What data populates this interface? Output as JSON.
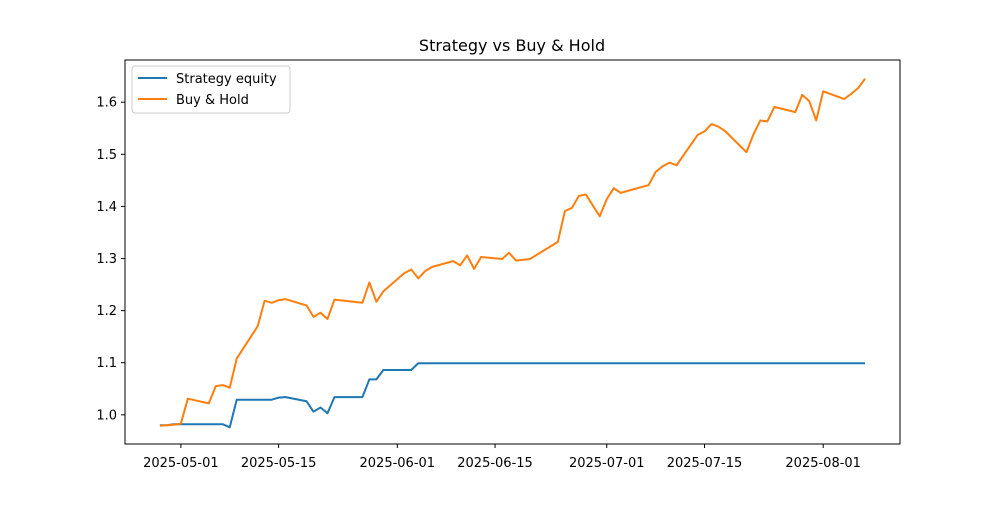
{
  "chart_data": {
    "type": "line",
    "title": "Strategy vs Buy & Hold",
    "xlabel": "",
    "ylabel": "",
    "x_ticks": [
      "2025-05-01",
      "2025-05-15",
      "2025-06-01",
      "2025-06-15",
      "2025-07-01",
      "2025-07-15",
      "2025-08-01"
    ],
    "y_ticks": [
      "1.0",
      "1.1",
      "1.2",
      "1.3",
      "1.4",
      "1.5",
      "1.6"
    ],
    "xlim": [
      "2025-04-23",
      "2025-08-12"
    ],
    "ylim": [
      0.944,
      1.681
    ],
    "grid": false,
    "legend_position": "upper left",
    "series": [
      {
        "name": "Strategy equity",
        "color": "#1f77b4",
        "points": [
          [
            "2025-04-28",
            0.98
          ],
          [
            "2025-04-29",
            0.98
          ],
          [
            "2025-04-30",
            0.982
          ],
          [
            "2025-05-01",
            0.982
          ],
          [
            "2025-05-02",
            0.982
          ],
          [
            "2025-05-05",
            0.982
          ],
          [
            "2025-05-06",
            0.982
          ],
          [
            "2025-05-07",
            0.982
          ],
          [
            "2025-05-08",
            0.976
          ],
          [
            "2025-05-09",
            1.029
          ],
          [
            "2025-05-12",
            1.029
          ],
          [
            "2025-05-13",
            1.029
          ],
          [
            "2025-05-14",
            1.029
          ],
          [
            "2025-05-15",
            1.033
          ],
          [
            "2025-05-16",
            1.034
          ],
          [
            "2025-05-19",
            1.026
          ],
          [
            "2025-05-20",
            1.006
          ],
          [
            "2025-05-21",
            1.014
          ],
          [
            "2025-05-22",
            1.003
          ],
          [
            "2025-05-23",
            1.034
          ],
          [
            "2025-05-27",
            1.034
          ],
          [
            "2025-05-28",
            1.068
          ],
          [
            "2025-05-29",
            1.068
          ],
          [
            "2025-05-30",
            1.086
          ],
          [
            "2025-06-02",
            1.086
          ],
          [
            "2025-06-03",
            1.086
          ],
          [
            "2025-06-04",
            1.099
          ],
          [
            "2025-06-10",
            1.099
          ],
          [
            "2025-06-20",
            1.099
          ],
          [
            "2025-07-01",
            1.099
          ],
          [
            "2025-07-15",
            1.099
          ],
          [
            "2025-08-01",
            1.099
          ],
          [
            "2025-08-07",
            1.099
          ]
        ]
      },
      {
        "name": "Buy & Hold",
        "color": "#ff7f0e",
        "points": [
          [
            "2025-04-28",
            0.979
          ],
          [
            "2025-04-29",
            0.98
          ],
          [
            "2025-04-30",
            0.981
          ],
          [
            "2025-05-01",
            0.983
          ],
          [
            "2025-05-02",
            1.031
          ],
          [
            "2025-05-05",
            1.022
          ],
          [
            "2025-05-06",
            1.055
          ],
          [
            "2025-05-07",
            1.057
          ],
          [
            "2025-05-08",
            1.052
          ],
          [
            "2025-05-09",
            1.108
          ],
          [
            "2025-05-12",
            1.17
          ],
          [
            "2025-05-13",
            1.219
          ],
          [
            "2025-05-14",
            1.215
          ],
          [
            "2025-05-15",
            1.22
          ],
          [
            "2025-05-16",
            1.222
          ],
          [
            "2025-05-19",
            1.21
          ],
          [
            "2025-05-20",
            1.188
          ],
          [
            "2025-05-21",
            1.196
          ],
          [
            "2025-05-22",
            1.184
          ],
          [
            "2025-05-23",
            1.221
          ],
          [
            "2025-05-27",
            1.215
          ],
          [
            "2025-05-28",
            1.254
          ],
          [
            "2025-05-29",
            1.217
          ],
          [
            "2025-05-30",
            1.237
          ],
          [
            "2025-06-02",
            1.272
          ],
          [
            "2025-06-03",
            1.279
          ],
          [
            "2025-06-04",
            1.262
          ],
          [
            "2025-06-05",
            1.276
          ],
          [
            "2025-06-06",
            1.284
          ],
          [
            "2025-06-09",
            1.295
          ],
          [
            "2025-06-10",
            1.287
          ],
          [
            "2025-06-11",
            1.306
          ],
          [
            "2025-06-12",
            1.28
          ],
          [
            "2025-06-13",
            1.303
          ],
          [
            "2025-06-16",
            1.299
          ],
          [
            "2025-06-17",
            1.311
          ],
          [
            "2025-06-18",
            1.296
          ],
          [
            "2025-06-20",
            1.299
          ],
          [
            "2025-06-24",
            1.332
          ],
          [
            "2025-06-25",
            1.391
          ],
          [
            "2025-06-26",
            1.397
          ],
          [
            "2025-06-27",
            1.42
          ],
          [
            "2025-06-28",
            1.423
          ],
          [
            "2025-06-30",
            1.381
          ],
          [
            "2025-07-01",
            1.414
          ],
          [
            "2025-07-02",
            1.435
          ],
          [
            "2025-07-03",
            1.426
          ],
          [
            "2025-07-07",
            1.441
          ],
          [
            "2025-07-08",
            1.466
          ],
          [
            "2025-07-09",
            1.477
          ],
          [
            "2025-07-10",
            1.484
          ],
          [
            "2025-07-11",
            1.479
          ],
          [
            "2025-07-14",
            1.537
          ],
          [
            "2025-07-15",
            1.544
          ],
          [
            "2025-07-16",
            1.558
          ],
          [
            "2025-07-17",
            1.553
          ],
          [
            "2025-07-18",
            1.544
          ],
          [
            "2025-07-21",
            1.504
          ],
          [
            "2025-07-22",
            1.538
          ],
          [
            "2025-07-23",
            1.565
          ],
          [
            "2025-07-24",
            1.563
          ],
          [
            "2025-07-25",
            1.591
          ],
          [
            "2025-07-28",
            1.581
          ],
          [
            "2025-07-29",
            1.614
          ],
          [
            "2025-07-30",
            1.602
          ],
          [
            "2025-07-31",
            1.565
          ],
          [
            "2025-08-01",
            1.621
          ],
          [
            "2025-08-04",
            1.606
          ],
          [
            "2025-08-05",
            1.616
          ],
          [
            "2025-08-06",
            1.627
          ],
          [
            "2025-08-07",
            1.645
          ]
        ]
      }
    ]
  }
}
